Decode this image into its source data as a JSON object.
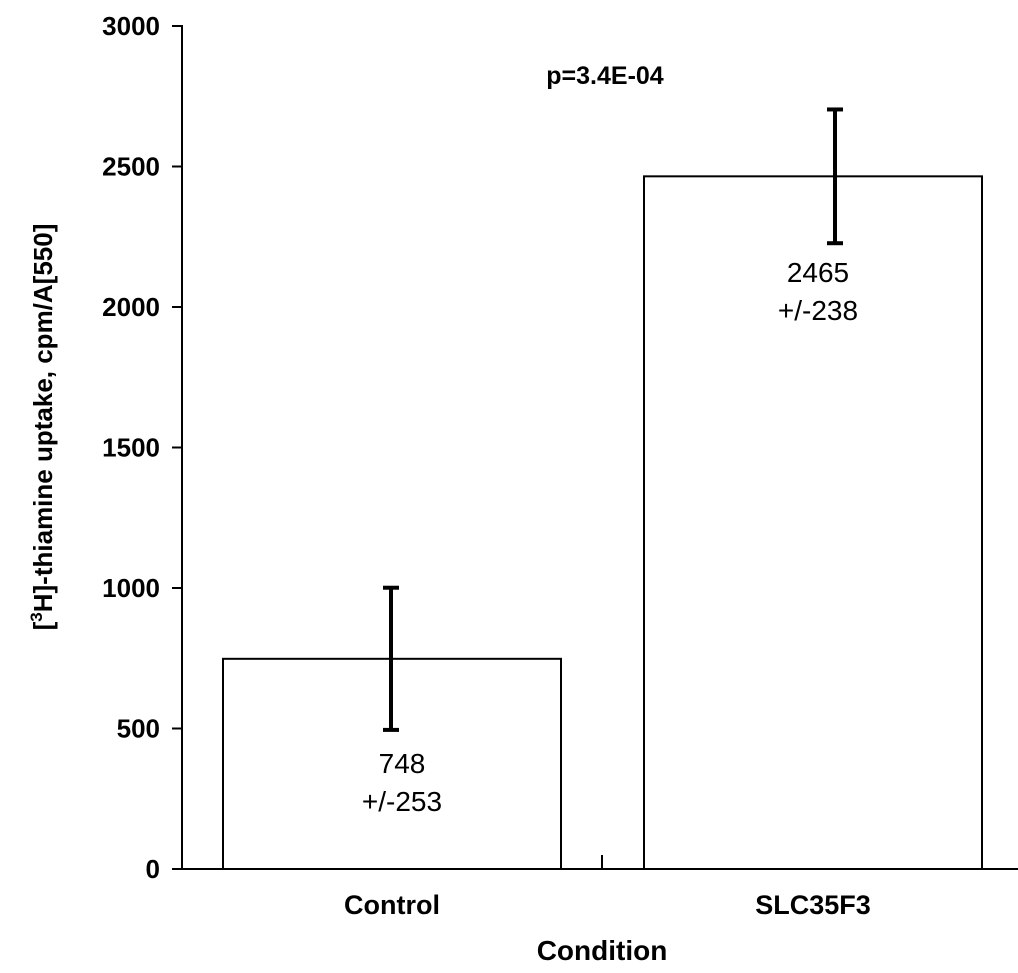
{
  "chart_data": {
    "type": "bar",
    "categories": [
      "Control",
      "SLC35F3"
    ],
    "values": [
      748,
      2465
    ],
    "errors": [
      253,
      238
    ],
    "value_labels": [
      {
        "value": "748",
        "error": "+/-253"
      },
      {
        "value": "2465",
        "error": "+/-238"
      }
    ],
    "xlabel": "Condition",
    "ylabel": {
      "prefix": "[",
      "superscript": "3",
      "suffix": "H]-thiamine uptake, cpm/A[550]"
    },
    "annotation": "p=3.4E-04",
    "ylim": [
      0,
      3000
    ],
    "yticks": [
      0,
      500,
      1000,
      1500,
      2000,
      2500,
      3000
    ],
    "colors": {
      "bar_fill": "#ffffff",
      "bar_stroke": "#000000",
      "error_bar": "#000000"
    },
    "grid": false,
    "legend": "none"
  }
}
